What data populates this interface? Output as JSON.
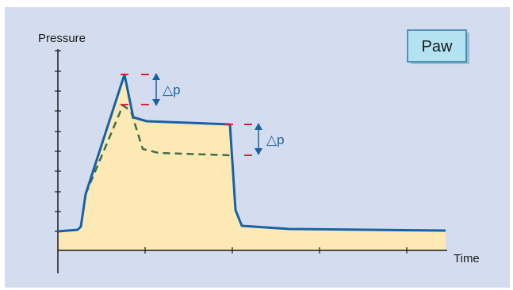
{
  "chart": {
    "ylabel": "Pressure",
    "xlabel": "Time",
    "badge": "Paw",
    "delta_labels": [
      "△p",
      "△p"
    ]
  },
  "colors": {
    "background_panel": "#d4ddef",
    "fill_area": "#fde9b4",
    "main_curve": "#1761a8",
    "dashed_curve": "#3f6e4a",
    "marker_red": "#e4202b",
    "badge_bg": "#b3e3f0",
    "badge_border": "#2c7ca6"
  },
  "chart_data": {
    "type": "line",
    "title": "",
    "xlabel": "Time",
    "ylabel": "Pressure",
    "series": [
      {
        "name": "Paw",
        "style": "solid"
      },
      {
        "style": "dashed"
      }
    ],
    "annotations": [
      "△p",
      "△p"
    ]
  }
}
